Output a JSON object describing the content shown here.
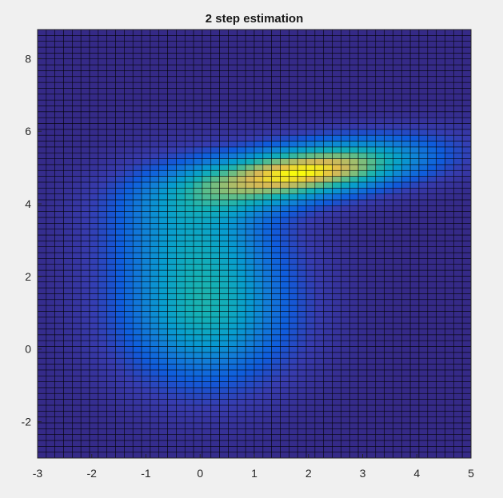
{
  "chart_data": {
    "type": "heatmap",
    "title": "2 step estimation",
    "xlabel": "",
    "ylabel": "",
    "xlim": [
      -3,
      5
    ],
    "ylim": [
      -3,
      8.8
    ],
    "grid": {
      "x_cells": 50,
      "y_cells": 73
    },
    "xticks": [
      -3,
      -2,
      -1,
      0,
      1,
      2,
      3,
      4,
      5
    ],
    "yticks": [
      -2,
      0,
      2,
      4,
      6,
      8
    ],
    "colormap": "parula",
    "surface": {
      "description_value_range": [
        0,
        1
      ],
      "components": [
        {
          "cx": 0.1,
          "cy": 1.1,
          "sx": 1.15,
          "sy": 1.5,
          "rho": 0.0,
          "weight": 0.62
        },
        {
          "cx": 2.0,
          "cy": 4.9,
          "sx": 1.5,
          "sy": 0.6,
          "rho": 0.45,
          "weight": 1.0
        },
        {
          "cx": -0.2,
          "cy": 3.6,
          "sx": 1.1,
          "sy": 1.1,
          "rho": 0.0,
          "weight": 0.35
        }
      ]
    }
  },
  "colors": {
    "background": "#f0f0f0",
    "axes_box": "#262626",
    "cell_edge": "#000000"
  }
}
